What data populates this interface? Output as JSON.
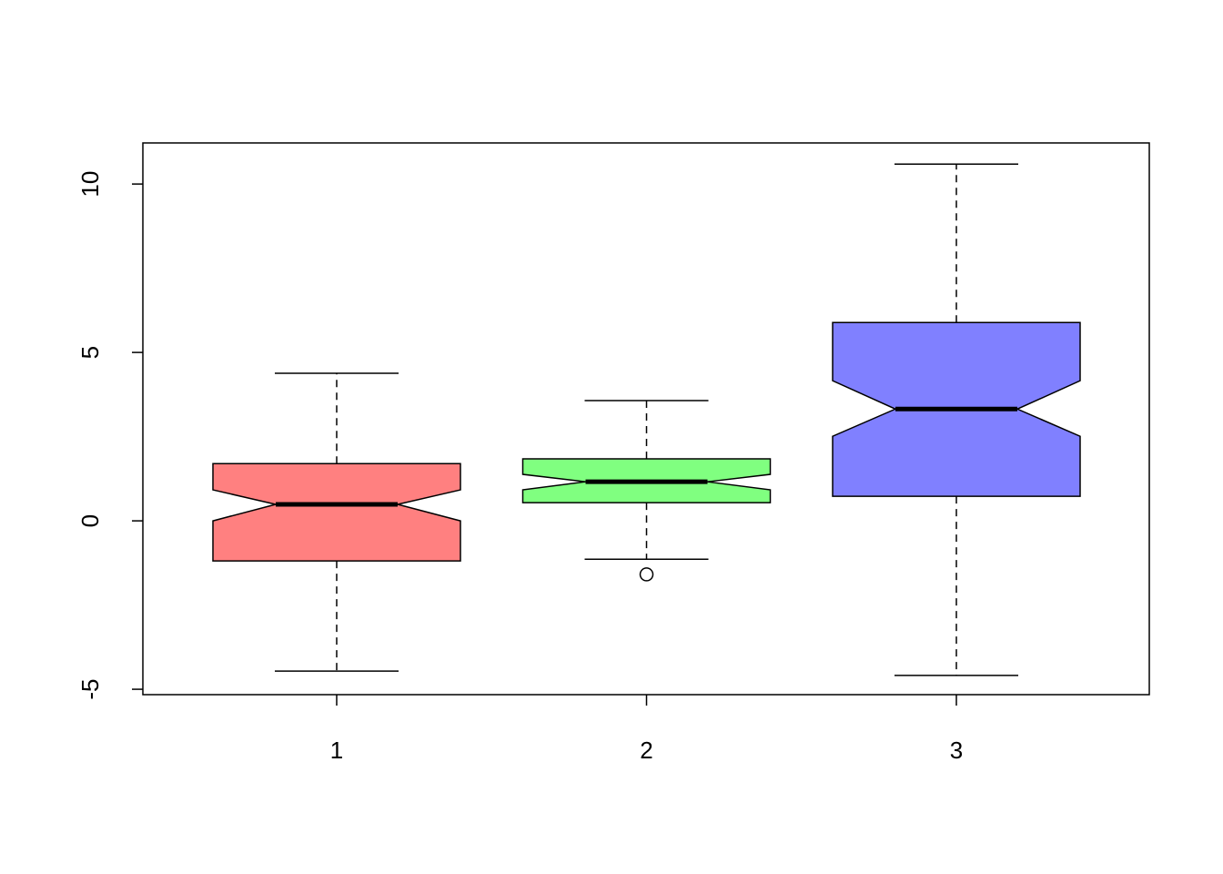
{
  "chart_data": {
    "type": "boxplot",
    "categories": [
      "1",
      "2",
      "3"
    ],
    "boxes": [
      {
        "color": "#ff8080",
        "min": -4.46,
        "q1": -1.19,
        "median": 0.49,
        "q3": 1.7,
        "max": 4.38,
        "notch_low": 0.0,
        "notch_high": 0.92,
        "outliers": []
      },
      {
        "color": "#80ff80",
        "min": -1.14,
        "q1": 0.54,
        "median": 1.16,
        "q3": 1.84,
        "max": 3.57,
        "notch_low": 0.92,
        "notch_high": 1.38,
        "outliers": [
          -1.59
        ]
      },
      {
        "color": "#8080ff",
        "min": -4.59,
        "q1": 0.73,
        "median": 3.32,
        "q3": 5.89,
        "max": 10.59,
        "notch_low": 2.51,
        "notch_high": 4.16,
        "outliers": []
      }
    ],
    "ylim": [
      -5.16,
      11.22
    ],
    "yticks": [
      -5,
      0,
      5,
      10
    ]
  }
}
